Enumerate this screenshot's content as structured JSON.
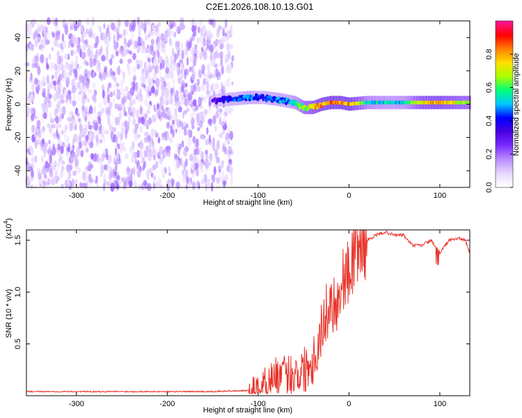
{
  "title": "C2E1.2026.108.10.13.G01",
  "colors": {
    "snr_line": "#e8332a",
    "axis": "#000000",
    "spectrogram_cmap": [
      "#ffffff",
      "#e6d6ff",
      "#b98cff",
      "#7a2cff",
      "#4a00e0",
      "#0000ff",
      "#00c8ff",
      "#00ff7a",
      "#a8ff00",
      "#ffe000",
      "#ff8000",
      "#ff0000",
      "#ff1493"
    ]
  },
  "chart_data": [
    {
      "type": "heatmap",
      "name": "spectrogram",
      "xlabel": "Height of straight line (km)",
      "ylabel": "Frequency (Hz)",
      "xlim": [
        -355,
        133
      ],
      "ylim": [
        -50,
        50
      ],
      "xticks": [
        -300,
        -200,
        -100,
        0,
        100
      ],
      "xtick_labels": [
        "-300",
        "-200",
        "-100",
        "0",
        "100"
      ],
      "yticks": [
        -40,
        -20,
        0,
        20,
        40
      ],
      "ytick_labels": [
        "-40",
        "-20",
        "0",
        "20",
        "40"
      ],
      "colorbar": {
        "label": "Normalized spectral amplitude",
        "range": [
          0,
          1
        ],
        "ticks": [
          0.0,
          0.2,
          0.4,
          0.6,
          0.8
        ],
        "tick_labels": [
          "0.0",
          "0.2",
          "0.4",
          "0.6",
          "0.8"
        ]
      },
      "noise_region": {
        "x_start": -355,
        "x_end": -128,
        "amplitude": 0.12
      },
      "signal_track": {
        "x": [
          -150,
          -130,
          -110,
          -95,
          -80,
          -70,
          -60,
          -50,
          -40,
          -30,
          -20,
          -10,
          0,
          20,
          40,
          60,
          80,
          100,
          120,
          133
        ],
        "frequency": [
          2,
          3,
          4,
          4,
          3,
          2,
          1,
          -2,
          -2,
          0,
          1,
          1,
          0,
          1,
          1,
          1,
          1,
          1,
          1,
          1
        ],
        "amplitude": [
          0.3,
          0.45,
          0.5,
          0.45,
          0.5,
          0.5,
          0.55,
          0.7,
          0.8,
          0.85,
          0.9,
          0.88,
          0.9,
          0.6,
          0.55,
          0.55,
          0.8,
          0.85,
          0.75,
          0.7
        ]
      }
    },
    {
      "type": "line",
      "name": "snr",
      "xlabel": "Height of straight line (km)",
      "ylabel": "SNR (10 * v/v)",
      "y_multiplier_label": "(x10",
      "y_multiplier_exp": "4",
      "xlim": [
        -355,
        133
      ],
      "ylim": [
        0,
        1.6
      ],
      "xticks": [
        -300,
        -200,
        -100,
        0,
        100
      ],
      "xtick_labels": [
        "-300",
        "-200",
        "-100",
        "0",
        "100"
      ],
      "yticks": [
        0.5,
        1.0,
        1.5
      ],
      "ytick_labels": [
        "0.5",
        "1.0",
        "1.5"
      ],
      "series": [
        {
          "name": "SNR",
          "x": [
            -355,
            -300,
            -250,
            -200,
            -150,
            -110,
            -100,
            -90,
            -80,
            -70,
            -60,
            -50,
            -40,
            -35,
            -30,
            -25,
            -20,
            -15,
            -10,
            -5,
            0,
            5,
            10,
            15,
            20,
            30,
            40,
            50,
            60,
            70,
            80,
            90,
            100,
            110,
            120,
            128,
            133
          ],
          "y": [
            0.04,
            0.04,
            0.04,
            0.04,
            0.04,
            0.05,
            0.07,
            0.15,
            0.2,
            0.2,
            0.22,
            0.25,
            0.35,
            0.45,
            0.65,
            0.8,
            0.9,
            0.9,
            0.95,
            1.2,
            1.15,
            1.35,
            1.45,
            1.42,
            1.5,
            1.55,
            1.58,
            1.55,
            1.55,
            1.45,
            1.45,
            1.5,
            1.38,
            1.5,
            1.52,
            1.5,
            1.38
          ]
        }
      ]
    }
  ]
}
